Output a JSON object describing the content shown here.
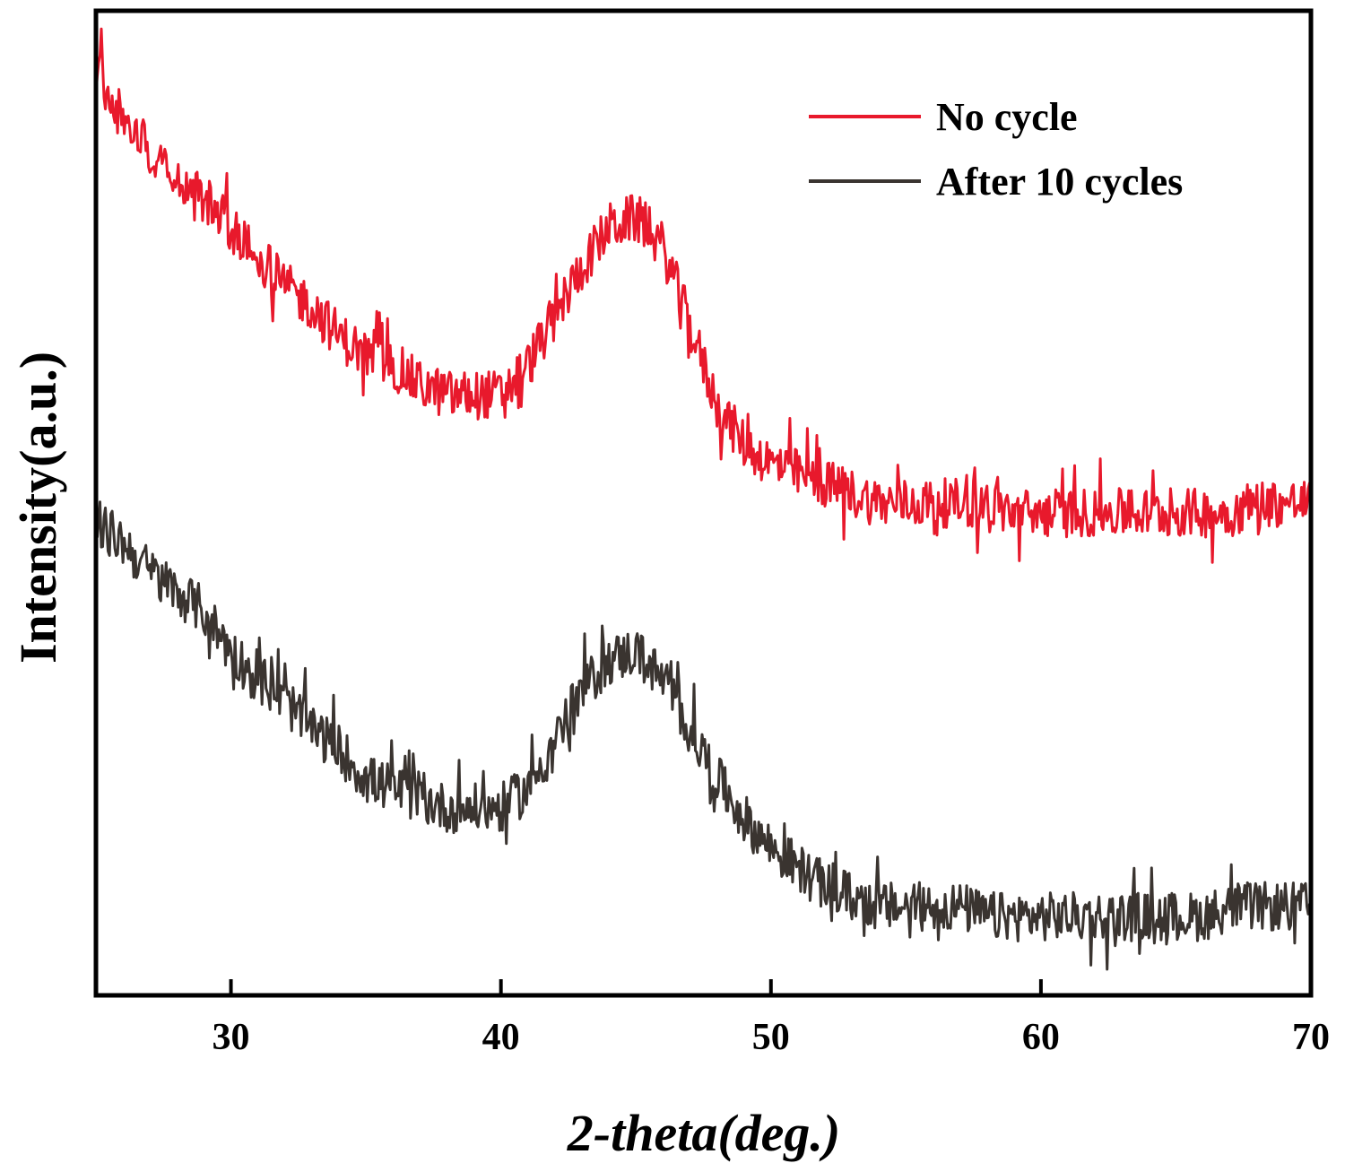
{
  "chart_data": {
    "type": "line",
    "title": "",
    "xlabel": "2-theta(deg.)",
    "ylabel": "Intensity(a.u.)",
    "xlim": [
      25,
      70
    ],
    "ylim": [
      0,
      1
    ],
    "xticks": [
      30,
      40,
      50,
      60,
      70
    ],
    "x_tick_labels": [
      "30",
      "40",
      "50",
      "60",
      "70"
    ],
    "y_ticks_shown": false,
    "grid": false,
    "legend_position": "top-right",
    "noise_amplitude": 0.025,
    "series": [
      {
        "name": "No cycle",
        "color": "#e8192c",
        "x": [
          25,
          26,
          27,
          28,
          29,
          30,
          31,
          32,
          33,
          34,
          35,
          36,
          37,
          38,
          39,
          40,
          41,
          42,
          43,
          44,
          45,
          46,
          47,
          48,
          49,
          50,
          51,
          52,
          53,
          54,
          55,
          56,
          57,
          58,
          59,
          60,
          61,
          62,
          63,
          64,
          65,
          66,
          67,
          68,
          69,
          70
        ],
        "y": [
          0.94,
          0.89,
          0.86,
          0.83,
          0.81,
          0.78,
          0.75,
          0.72,
          0.7,
          0.67,
          0.65,
          0.64,
          0.62,
          0.61,
          0.61,
          0.61,
          0.64,
          0.69,
          0.74,
          0.78,
          0.79,
          0.76,
          0.68,
          0.6,
          0.56,
          0.54,
          0.53,
          0.52,
          0.51,
          0.5,
          0.5,
          0.5,
          0.5,
          0.5,
          0.49,
          0.49,
          0.49,
          0.49,
          0.49,
          0.49,
          0.49,
          0.49,
          0.49,
          0.5,
          0.5,
          0.5
        ]
      },
      {
        "name": "After 10 cycles",
        "color": "#3a3430",
        "x": [
          25,
          26,
          27,
          28,
          29,
          30,
          31,
          32,
          33,
          34,
          35,
          36,
          37,
          38,
          39,
          40,
          41,
          42,
          43,
          44,
          45,
          46,
          47,
          48,
          49,
          50,
          51,
          52,
          53,
          54,
          55,
          56,
          57,
          58,
          59,
          60,
          61,
          62,
          63,
          64,
          65,
          66,
          67,
          68,
          69,
          70
        ],
        "y": [
          0.48,
          0.46,
          0.43,
          0.41,
          0.39,
          0.35,
          0.32,
          0.3,
          0.27,
          0.25,
          0.22,
          0.21,
          0.2,
          0.19,
          0.19,
          0.19,
          0.21,
          0.26,
          0.31,
          0.34,
          0.35,
          0.32,
          0.27,
          0.22,
          0.18,
          0.15,
          0.13,
          0.11,
          0.1,
          0.09,
          0.09,
          0.09,
          0.09,
          0.08,
          0.08,
          0.08,
          0.08,
          0.08,
          0.08,
          0.08,
          0.08,
          0.08,
          0.09,
          0.09,
          0.09,
          0.09
        ]
      }
    ]
  }
}
